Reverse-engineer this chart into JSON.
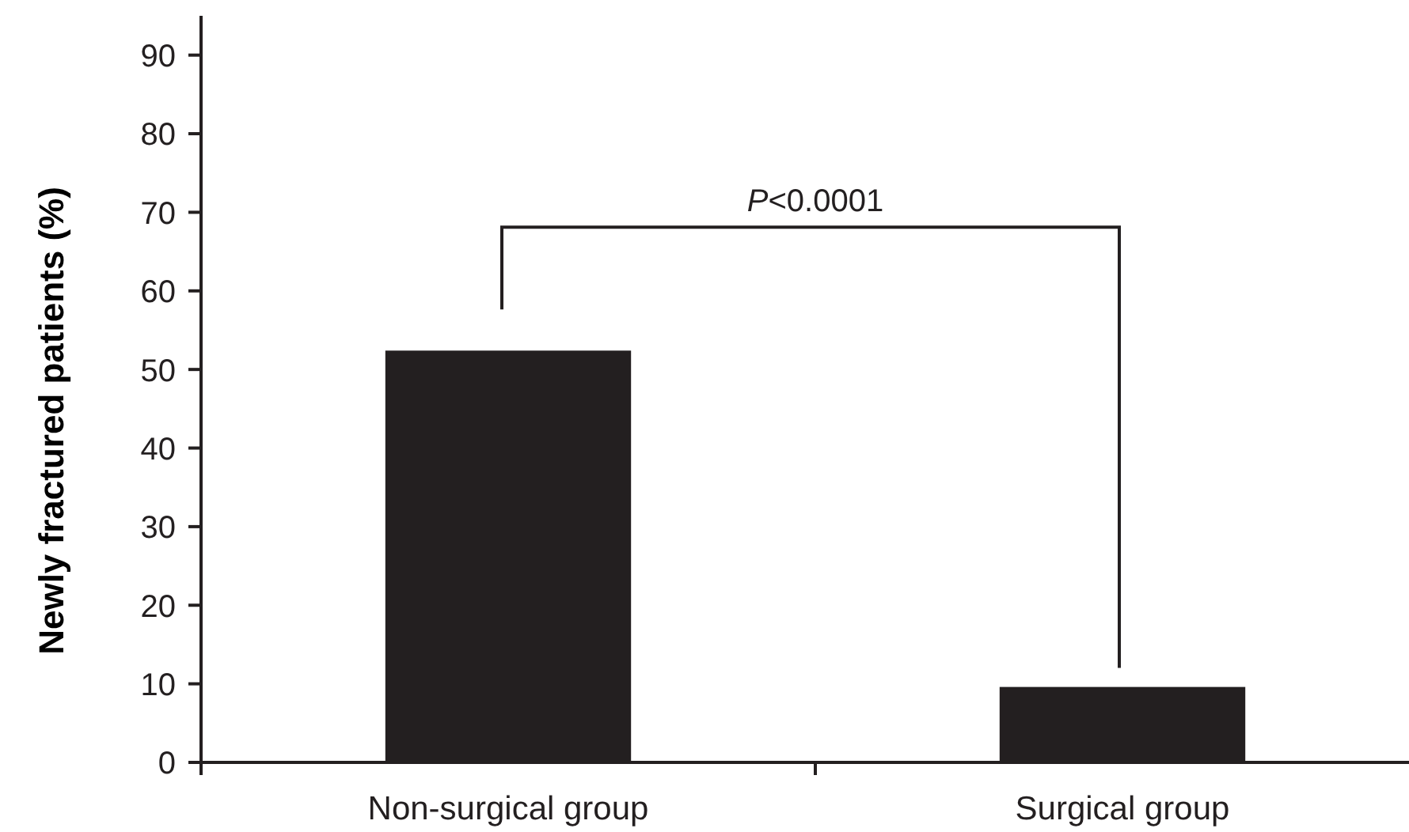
{
  "chart_data": {
    "type": "bar",
    "ylabel": "Newly fractured patients (%)",
    "categories": [
      "Non-surgical group",
      "Surgical group"
    ],
    "values": [
      52.4,
      9.6
    ],
    "color": "#231f20",
    "ylim": [
      0,
      95
    ],
    "yticks": [
      0,
      10,
      20,
      30,
      40,
      50,
      60,
      70,
      80,
      90
    ],
    "grid": false,
    "annotations": [
      "P<0.0001"
    ]
  }
}
